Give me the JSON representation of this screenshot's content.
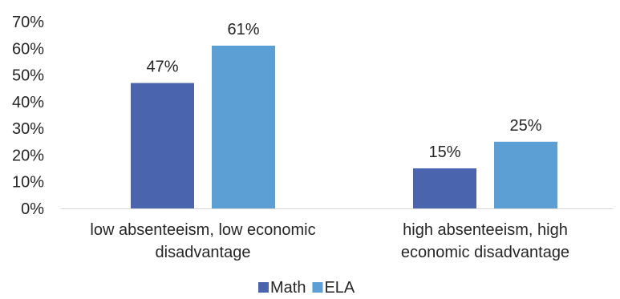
{
  "chart_data": {
    "type": "bar",
    "categories": [
      [
        "low absenteeism, low economic",
        "disadvantage"
      ],
      [
        "high absenteeism, high",
        "economic disadvantage"
      ]
    ],
    "series": [
      {
        "name": "Math",
        "values": [
          47,
          15
        ],
        "labels": [
          "47%",
          "15%"
        ],
        "color": "#4a64ae"
      },
      {
        "name": "ELA",
        "values": [
          61,
          25
        ],
        "labels": [
          "61%",
          "25%"
        ],
        "color": "#5b9fd4"
      }
    ],
    "ylim": [
      0,
      70
    ],
    "yticks": [
      0,
      10,
      20,
      30,
      40,
      50,
      60,
      70
    ],
    "ytick_labels": [
      "0%",
      "10%",
      "20%",
      "30%",
      "40%",
      "50%",
      "60%",
      "70%"
    ],
    "grid": false,
    "legend_position": "bottom",
    "axis_color": "#d9d9d9"
  }
}
